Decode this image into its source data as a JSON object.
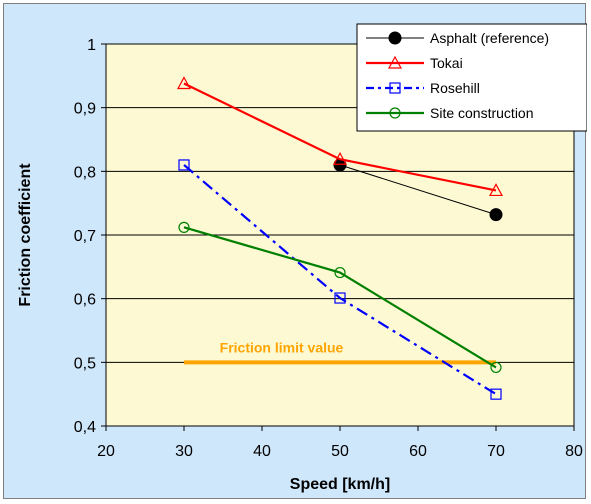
{
  "chart_data": {
    "type": "line",
    "xlabel": "Speed [km/h]",
    "ylabel": "Friction coefficient",
    "xlim": [
      20,
      80
    ],
    "ylim": [
      0.4,
      1.0
    ],
    "x_ticks": [
      "20",
      "30",
      "40",
      "50",
      "60",
      "70",
      "80"
    ],
    "y_ticks": [
      "0,4",
      "0,5",
      "0,6",
      "0,7",
      "0,8",
      "0,9",
      "1"
    ],
    "grid": true,
    "legend_position": "top-right",
    "background_color": "#cfe7fb",
    "plot_area_color": "#fcf9d3",
    "series": [
      {
        "name": "Asphalt (reference)",
        "color": "#000000",
        "marker": "filled-circle",
        "line": "solid-thin",
        "x": [
          50,
          70
        ],
        "values": [
          0.81,
          0.732
        ]
      },
      {
        "name": "Tokai",
        "color": "#ff0000",
        "marker": "open-triangle",
        "line": "solid",
        "x": [
          30,
          50,
          70
        ],
        "values": [
          0.938,
          0.819,
          0.77
        ]
      },
      {
        "name": "Rosehill",
        "color": "#0000ff",
        "marker": "open-square",
        "line": "dash-dot",
        "x": [
          30,
          50,
          70
        ],
        "values": [
          0.81,
          0.601,
          0.45
        ]
      },
      {
        "name": "Site construction",
        "color": "#008000",
        "marker": "open-circle",
        "line": "solid",
        "x": [
          30,
          50,
          70
        ],
        "values": [
          0.712,
          0.641,
          0.492
        ]
      }
    ],
    "reference_line": {
      "label": "Friction limit value",
      "value": 0.5,
      "x_range": [
        30,
        70
      ],
      "color": "#ffa500"
    }
  }
}
